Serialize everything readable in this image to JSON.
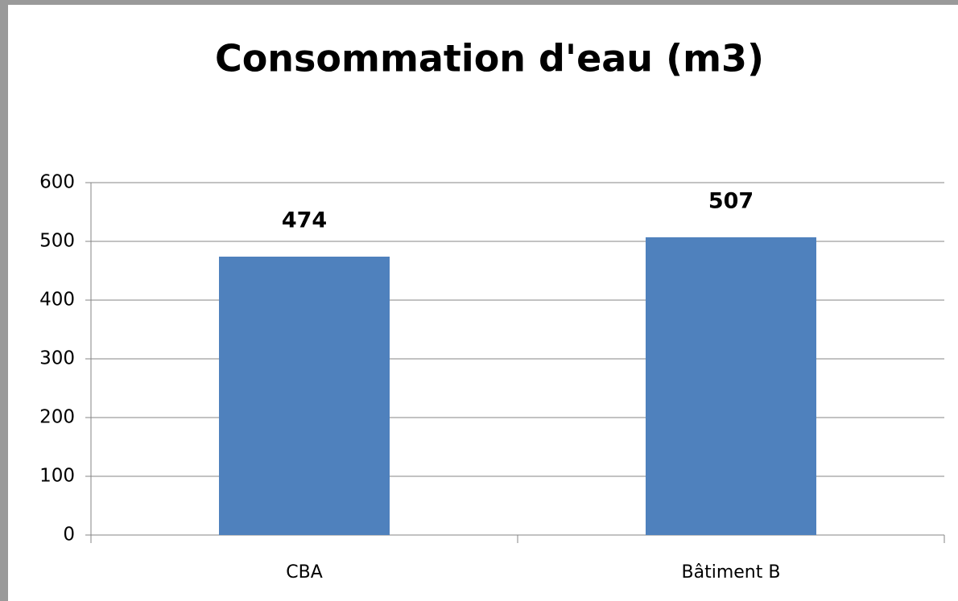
{
  "chart_data": {
    "type": "bar",
    "title": "Consommation d'eau (m3)",
    "categories": [
      "CBA",
      "Bâtiment B"
    ],
    "values": [
      474,
      507
    ],
    "color": "#4f81bd",
    "ylim": [
      0,
      600
    ],
    "yticks": [
      0,
      100,
      200,
      300,
      400,
      500,
      600
    ],
    "grid": true
  }
}
